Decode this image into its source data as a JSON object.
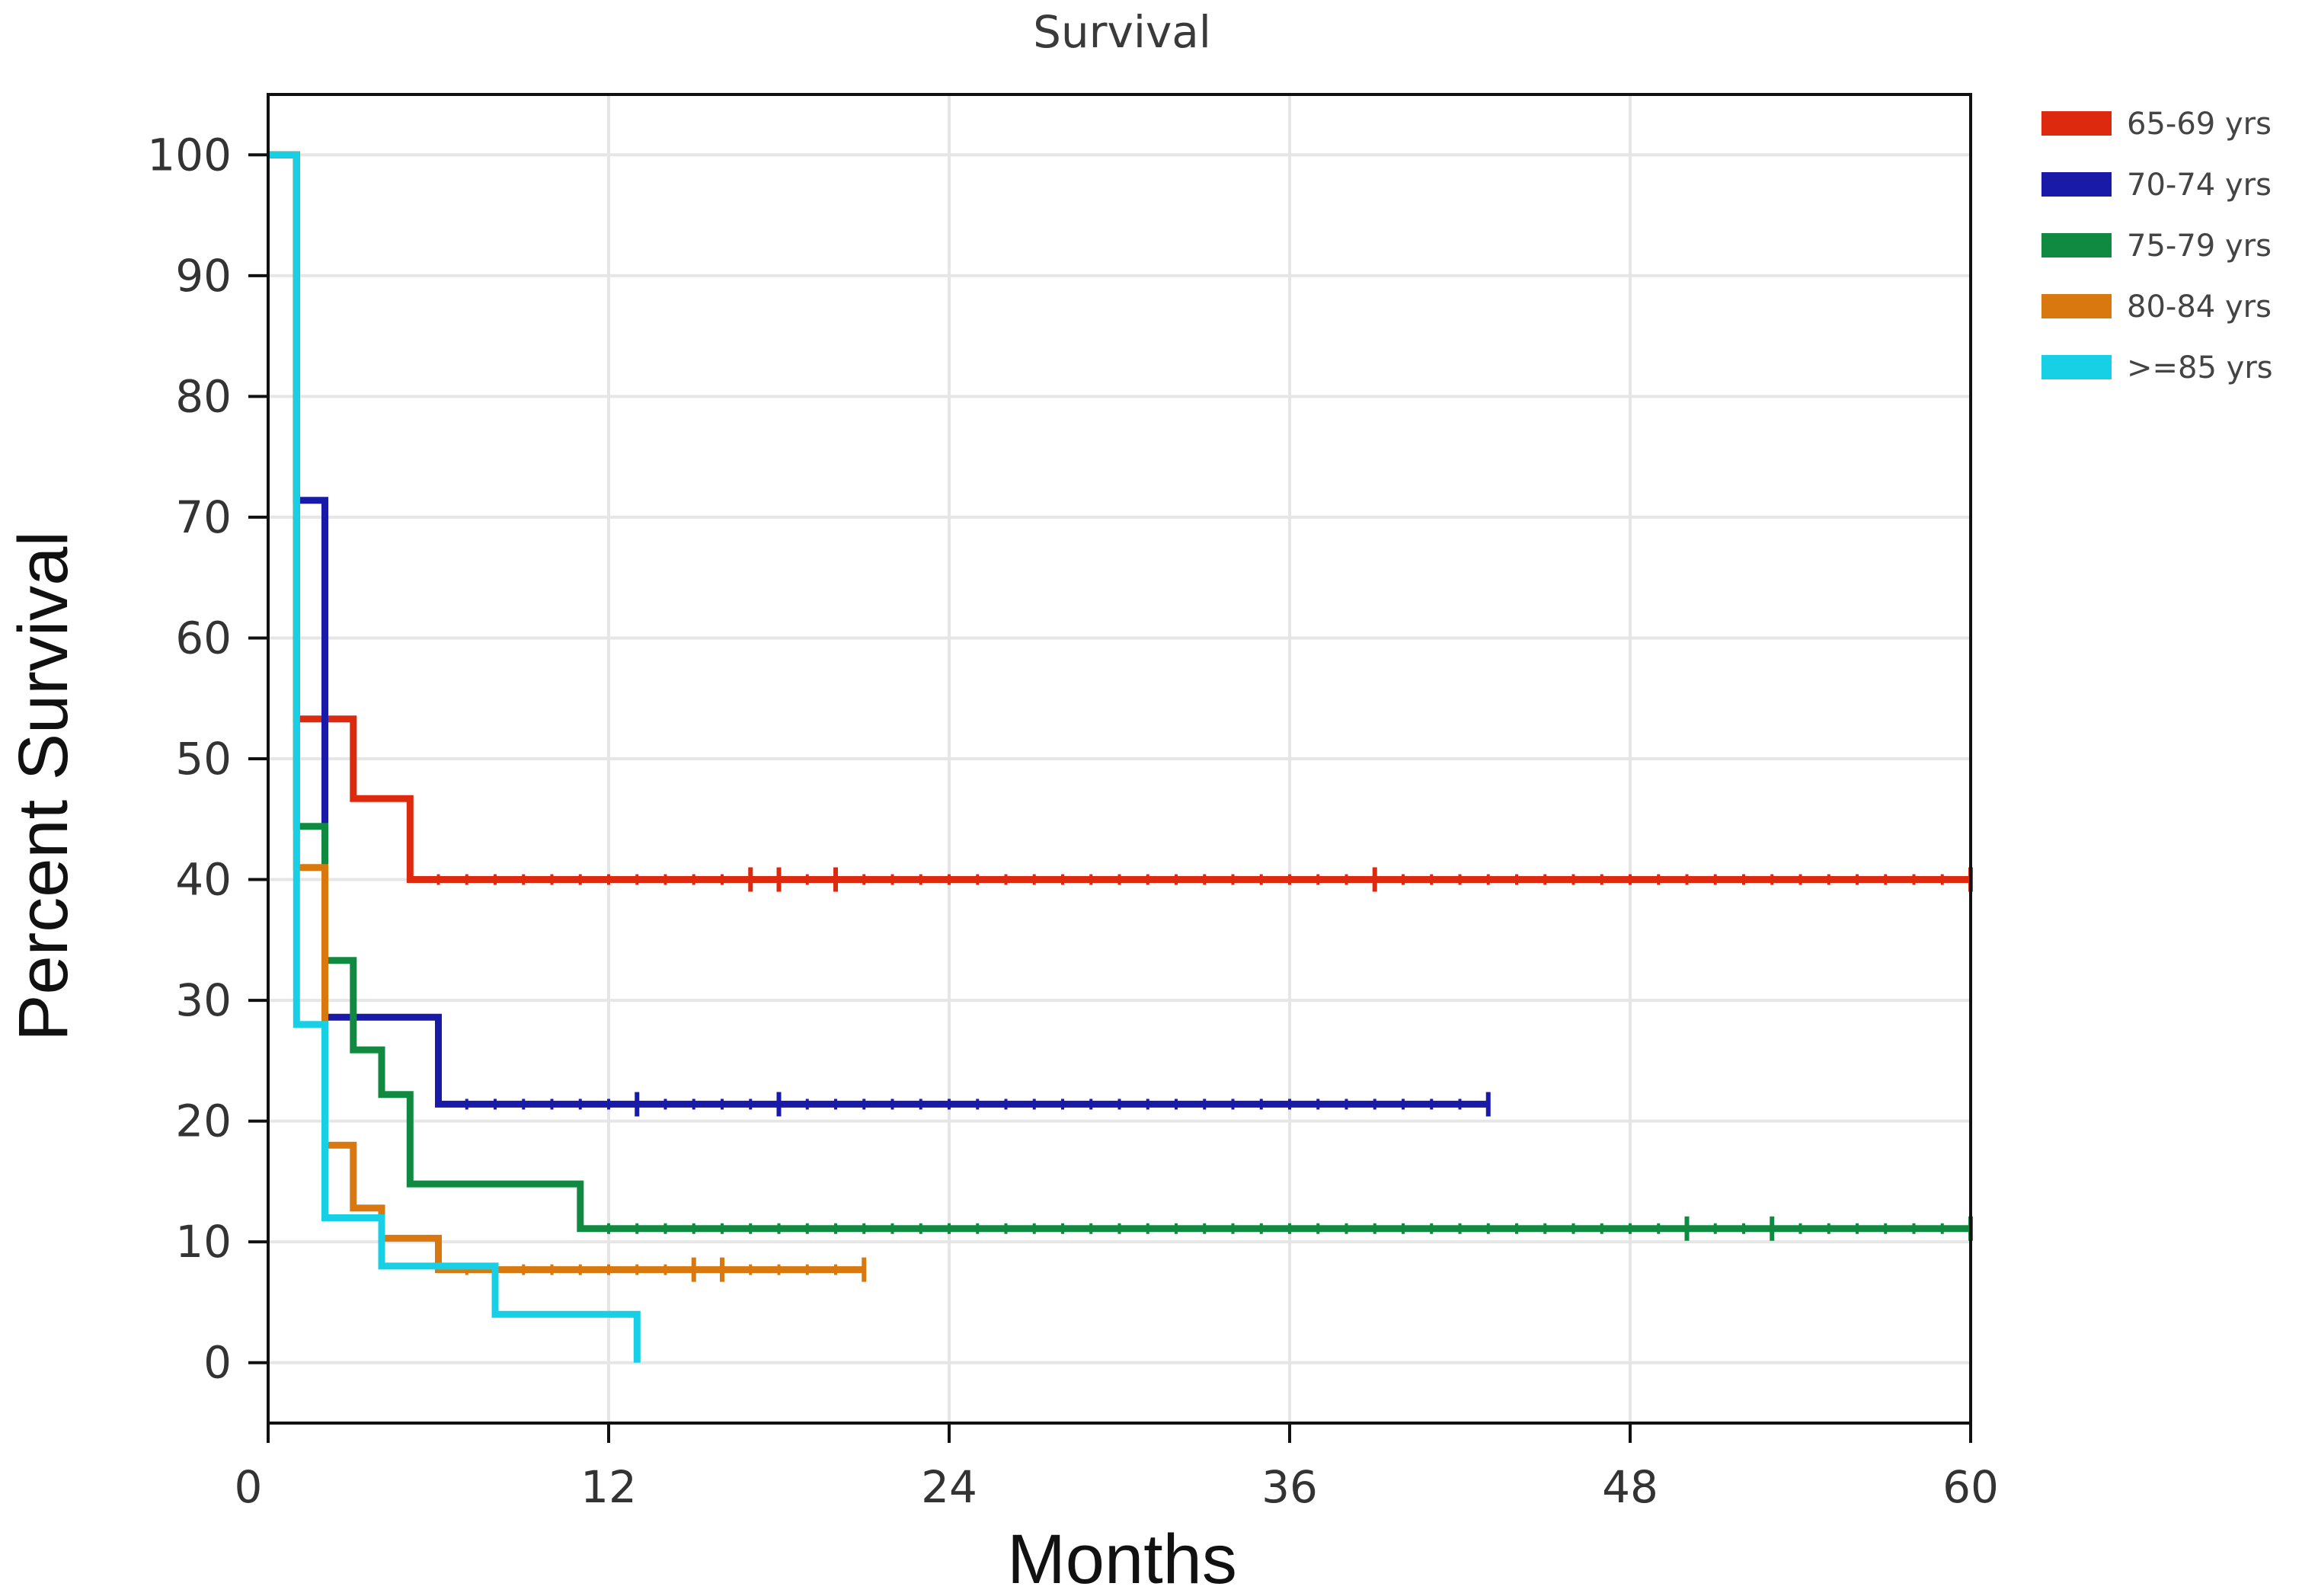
{
  "chart_data": {
    "type": "line",
    "step": true,
    "title": "Survival",
    "xlabel": "Months",
    "ylabel": "Percent Survival",
    "xlim": [
      0,
      60
    ],
    "ylim": [
      -5,
      105
    ],
    "xticks": [
      "0",
      "12",
      "24",
      "36",
      "48",
      "60"
    ],
    "yticks": [
      "0",
      "10",
      "20",
      "30",
      "40",
      "50",
      "60",
      "70",
      "80",
      "90",
      "100"
    ],
    "grid": true,
    "legend_position": "right-top",
    "series": [
      {
        "name": "65-69 yrs",
        "color": "#dd2a0e",
        "points": [
          [
            0,
            100
          ],
          [
            1,
            100
          ],
          [
            1,
            53.3
          ],
          [
            3,
            53.3
          ],
          [
            3,
            46.7
          ],
          [
            5,
            46.7
          ],
          [
            5,
            40
          ],
          [
            60,
            40
          ]
        ],
        "censored": [
          17,
          18,
          20,
          39,
          60
        ],
        "minor_ticks": true
      },
      {
        "name": "70-74 yrs",
        "color": "#1a1aa8",
        "points": [
          [
            0,
            100
          ],
          [
            1,
            100
          ],
          [
            1,
            71.4
          ],
          [
            2,
            71.4
          ],
          [
            2,
            28.6
          ],
          [
            6,
            28.6
          ],
          [
            6,
            21.4
          ],
          [
            43,
            21.4
          ]
        ],
        "censored": [
          13,
          18,
          43
        ],
        "minor_ticks": true
      },
      {
        "name": "75-79 yrs",
        "color": "#108a40",
        "points": [
          [
            0,
            100
          ],
          [
            1,
            100
          ],
          [
            1,
            44.4
          ],
          [
            2,
            44.4
          ],
          [
            2,
            33.3
          ],
          [
            3,
            33.3
          ],
          [
            3,
            25.9
          ],
          [
            4,
            25.9
          ],
          [
            4,
            22.2
          ],
          [
            5,
            22.2
          ],
          [
            5,
            14.8
          ],
          [
            11,
            14.8
          ],
          [
            11,
            11.1
          ],
          [
            60,
            11.1
          ]
        ],
        "censored": [
          50,
          53,
          60
        ],
        "minor_ticks": true
      },
      {
        "name": "80-84 yrs",
        "color": "#d9780e",
        "points": [
          [
            0,
            100
          ],
          [
            1,
            100
          ],
          [
            1,
            41
          ],
          [
            2,
            41
          ],
          [
            2,
            18
          ],
          [
            3,
            18
          ],
          [
            3,
            12.8
          ],
          [
            4,
            12.8
          ],
          [
            4,
            10.3
          ],
          [
            6,
            10.3
          ],
          [
            6,
            7.7
          ],
          [
            21,
            7.7
          ]
        ],
        "censored": [
          15,
          16,
          21
        ],
        "minor_ticks": true
      },
      {
        "name": ">=85 yrs",
        "color": "#18d0e6",
        "points": [
          [
            0,
            100
          ],
          [
            1,
            100
          ],
          [
            1,
            28
          ],
          [
            2,
            28
          ],
          [
            2,
            12
          ],
          [
            4,
            12
          ],
          [
            4,
            8
          ],
          [
            8,
            8
          ],
          [
            8,
            4
          ],
          [
            13,
            4
          ],
          [
            13,
            0
          ]
        ],
        "censored": [],
        "minor_ticks": false
      }
    ]
  }
}
